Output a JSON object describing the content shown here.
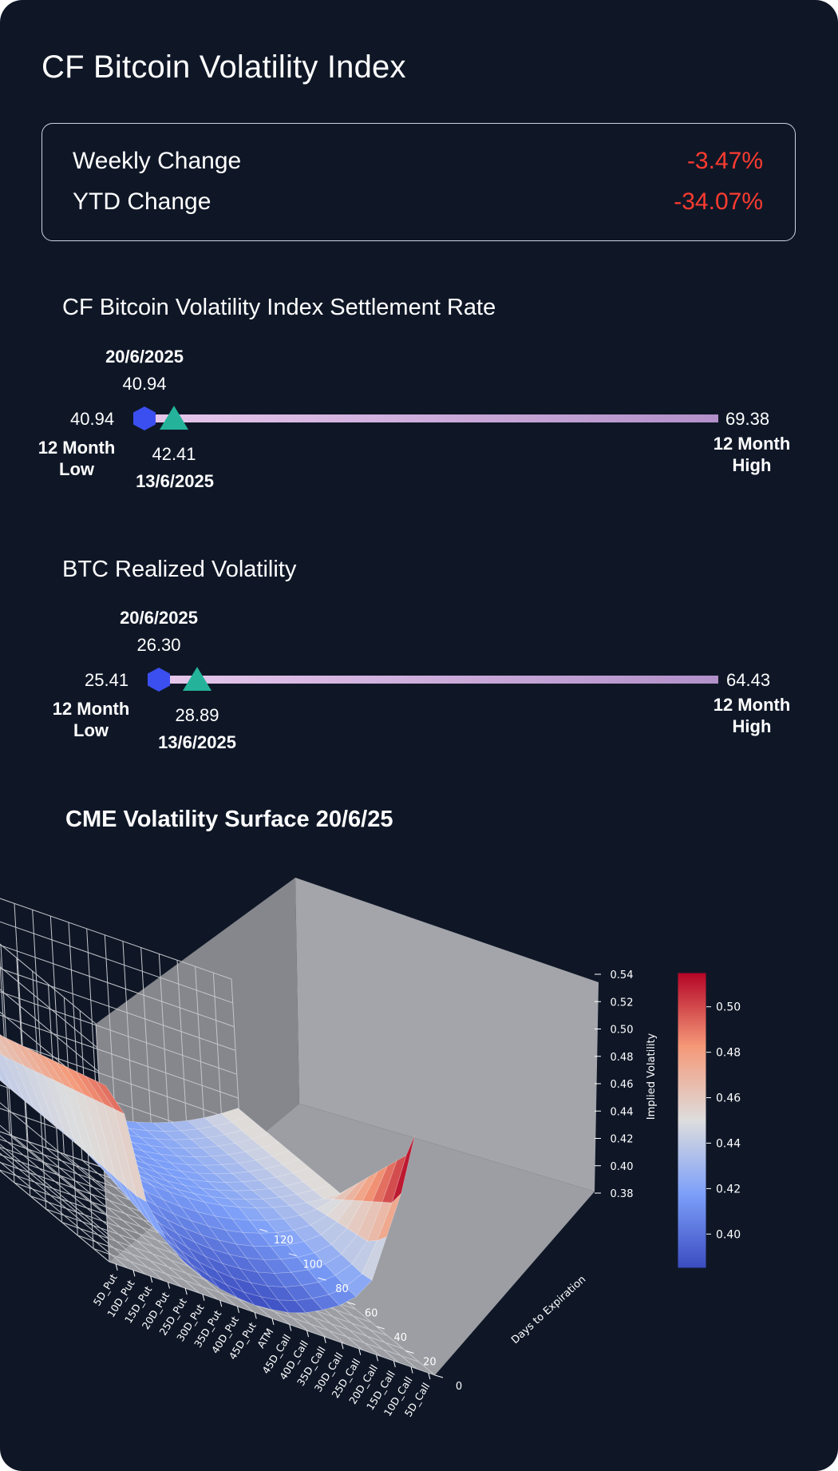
{
  "title": "CF Bitcoin Volatility Index",
  "changes": {
    "weekly_label": "Weekly Change",
    "weekly_value": "-3.47%",
    "ytd_label": "YTD Change",
    "ytd_value": "-34.07%"
  },
  "settlement": {
    "title": "CF Bitcoin Volatility Index Settlement Rate",
    "current_date": "20/6/2025",
    "current_value": "40.94",
    "low_value": "40.94",
    "low_label_1": "12 Month",
    "low_label_2": "Low",
    "prev_value": "42.41",
    "prev_date": "13/6/2025",
    "high_value": "69.38",
    "high_label_1": "12 Month",
    "high_label_2": "High"
  },
  "realized": {
    "title": "BTC Realized Volatility",
    "current_date": "20/6/2025",
    "current_value": "26.30",
    "low_value": "25.41",
    "low_label_1": "12 Month",
    "low_label_2": "Low",
    "prev_value": "28.89",
    "prev_date": "13/6/2025",
    "high_value": "64.43",
    "high_label_1": "12 Month",
    "high_label_2": "High"
  },
  "colors": {
    "background": "#0f1727",
    "negative": "#ff3b30",
    "bar": "#c9a6d8",
    "current_marker": "#3b4ff0",
    "previous_marker": "#24b39a"
  },
  "surface": {
    "title": "CME Volatility Surface 20/6/25"
  },
  "chart_data": {
    "type": "surface",
    "x_categories": [
      "5D_Put",
      "10D_Put",
      "15D_Put",
      "20D_Put",
      "25D_Put",
      "30D_Put",
      "35D_Put",
      "40D_Put",
      "45D_Put",
      "ATM",
      "45D_Call",
      "40D_Call",
      "35D_Call",
      "30D_Call",
      "25D_Call",
      "20D_Call",
      "15D_Call",
      "10D_Call",
      "5D_Call"
    ],
    "y_label": "Days to Expiration",
    "y_ticks": [
      0,
      20,
      40,
      60,
      80,
      100,
      120
    ],
    "y_range": [
      0,
      130
    ],
    "z_label": "Implied Volatility",
    "z_ticks": [
      "0.38",
      "0.40",
      "0.42",
      "0.44",
      "0.46",
      "0.48",
      "0.50",
      "0.52",
      "0.54"
    ],
    "z_range": [
      0.38,
      0.54
    ],
    "colorbar_ticks": [
      "0.40",
      "0.42",
      "0.44",
      "0.46",
      "0.48",
      "0.50"
    ],
    "colorbar_range": [
      0.385,
      0.515
    ],
    "colormap": "coolwarm",
    "front_row_days": [
      0,
      7,
      14,
      21,
      28,
      35,
      42,
      49,
      56
    ],
    "front_row_iv": [
      [
        0.5,
        0.465,
        0.43,
        0.41,
        0.398,
        0.392,
        0.388,
        0.386,
        0.385,
        0.386,
        0.388,
        0.392,
        0.398,
        0.405,
        0.415,
        0.43,
        0.455,
        0.495,
        0.54
      ],
      [
        0.495,
        0.46,
        0.428,
        0.408,
        0.397,
        0.391,
        0.387,
        0.385,
        0.384,
        0.385,
        0.387,
        0.391,
        0.397,
        0.404,
        0.414,
        0.428,
        0.452,
        0.49,
        0.53
      ]
    ]
  }
}
